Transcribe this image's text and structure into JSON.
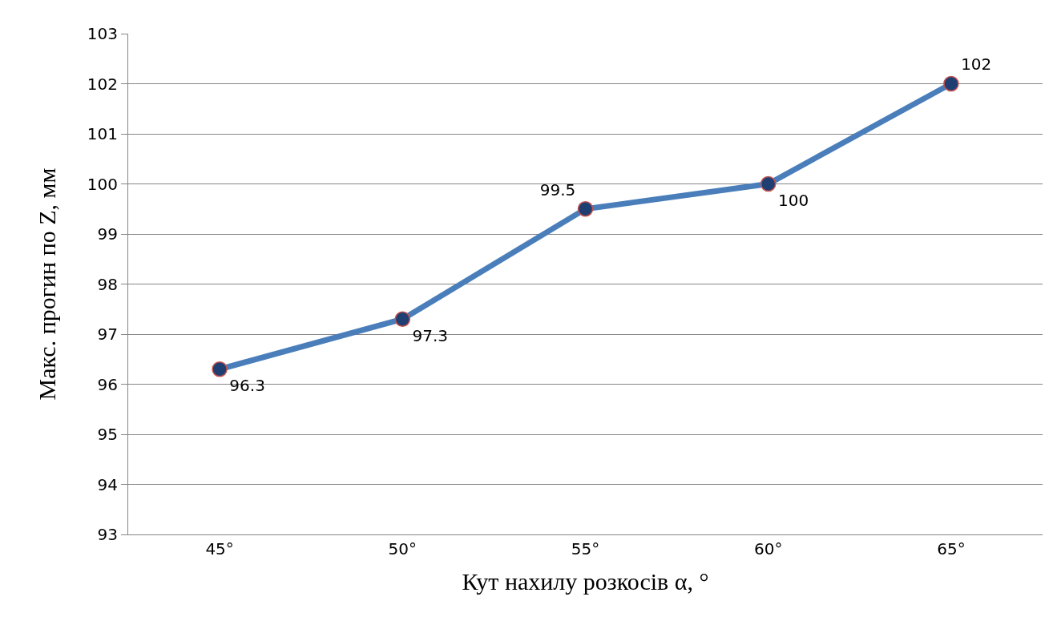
{
  "chart_data": {
    "type": "line",
    "xlabel": "Кут нахилу розкосів α, °",
    "ylabel": "Макс. прогин по Z, мм",
    "categories": [
      "45°",
      "50°",
      "55°",
      "60°",
      "65°"
    ],
    "series": [
      {
        "color": "#4a7ebb",
        "values": [
          96.3,
          97.3,
          99.5,
          100,
          102
        ]
      }
    ],
    "ylim": [
      93,
      103
    ],
    "yticks": [
      93,
      94,
      95,
      96,
      97,
      98,
      99,
      100,
      101,
      102,
      103
    ],
    "grid": "y",
    "marker": "circle",
    "line_style": "solid",
    "data_labels": true
  }
}
